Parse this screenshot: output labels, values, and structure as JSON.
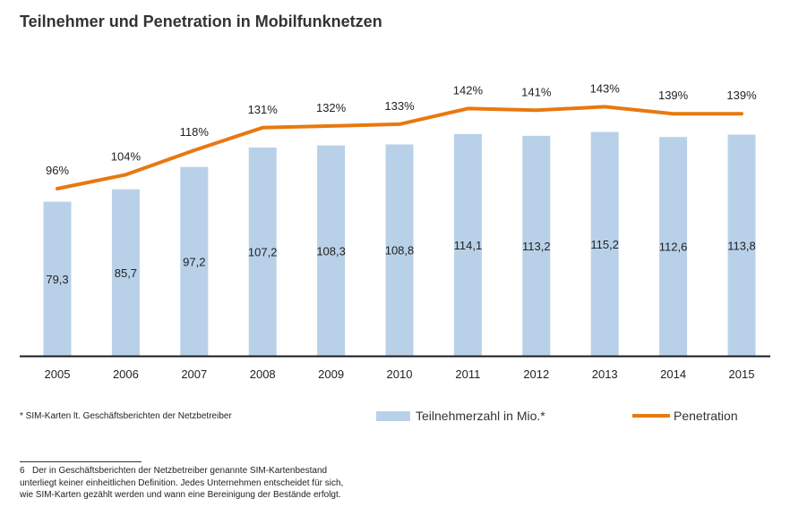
{
  "chart_data": {
    "type": "bar",
    "title": "Teilnehmer und Penetration in Mobilfunknetzen",
    "categories": [
      "2005",
      "2006",
      "2007",
      "2008",
      "2009",
      "2010",
      "2011",
      "2012",
      "2013",
      "2014",
      "2015"
    ],
    "series": [
      {
        "name": "Teilnehmerzahl in Mio.*",
        "type": "bar",
        "values": [
          79.3,
          85.7,
          97.2,
          107.2,
          108.3,
          108.8,
          114.1,
          113.2,
          115.2,
          112.6,
          113.8
        ],
        "labels": [
          "79,3",
          "85,7",
          "97,2",
          "107,2",
          "108,3",
          "108,8",
          "114,1",
          "113,2",
          "115,2",
          "112,6",
          "113,8"
        ],
        "color": "#b9d1e8"
      },
      {
        "name": "Penetration",
        "type": "line",
        "values": [
          96,
          104,
          118,
          131,
          132,
          133,
          142,
          141,
          143,
          139,
          139
        ],
        "labels": [
          "96%",
          "104%",
          "118%",
          "131%",
          "132%",
          "133%",
          "142%",
          "141%",
          "143%",
          "139%",
          "139%"
        ],
        "color": "#e8790f"
      }
    ],
    "xlabel": "",
    "ylabel": "",
    "ylim_bars": [
      0,
      138
    ],
    "ylim_line": [
      0,
      154
    ],
    "grid": false,
    "legend_position": "bottom"
  },
  "source_note": "* SIM-Karten lt. Geschäftsberichten der Netzbetreiber",
  "footnote": {
    "number": "6",
    "lines": [
      "Der in Geschäftsberichten der Netzbetreiber genannte SIM-Kartenbestand",
      "unterliegt keiner einheitlichen Definition. Jedes Unternehmen entscheidet für sich,",
      "wie SIM-Karten gezählt werden und wann eine Bereinigung der Bestände erfolgt."
    ]
  }
}
